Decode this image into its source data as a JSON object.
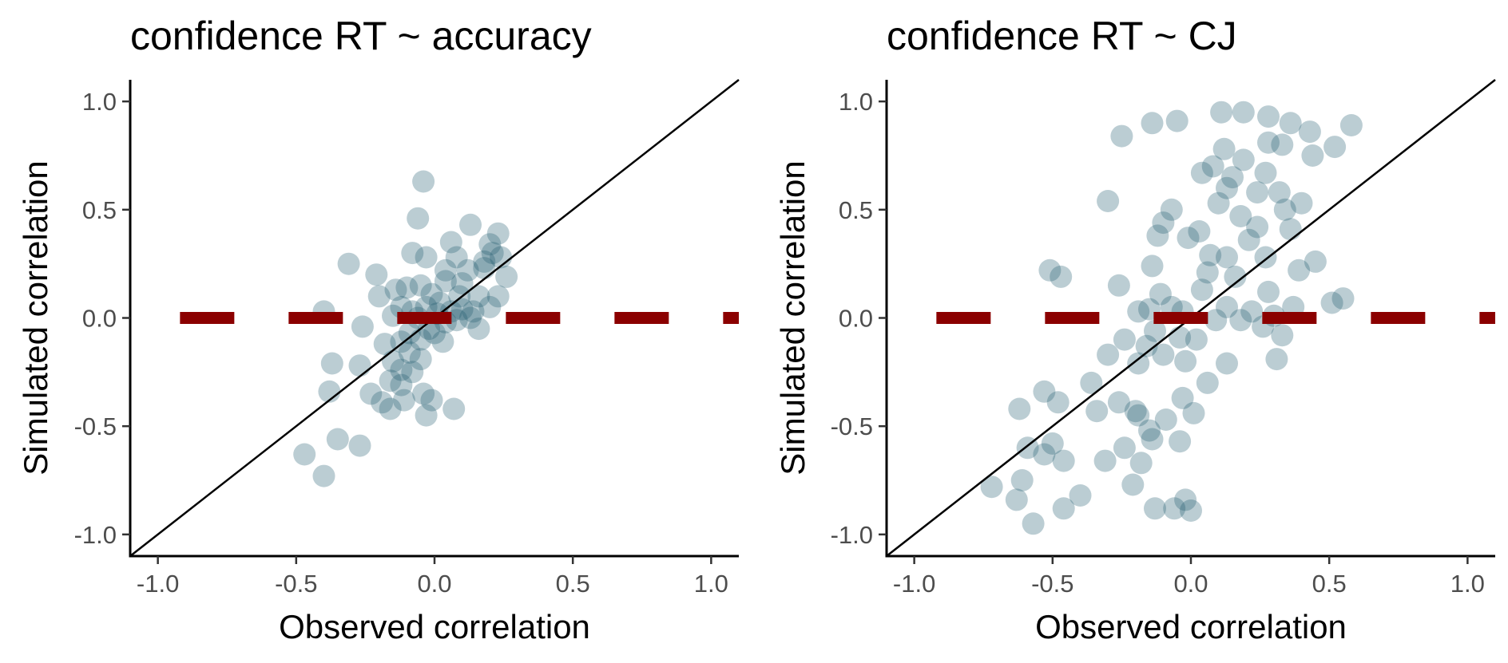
{
  "chart_data": [
    {
      "type": "scatter",
      "title": "confidence RT ~ accuracy",
      "xlabel": "Observed correlation",
      "ylabel": "Simulated correlation",
      "xlim": [
        -1.1,
        1.1
      ],
      "ylim": [
        -1.1,
        1.1
      ],
      "xticks": [
        "-1.0",
        "-0.5",
        "0.0",
        "0.5",
        "1.0"
      ],
      "yticks": [
        "-1.0",
        "-0.5",
        "0.0",
        "0.5",
        "1.0"
      ],
      "grid": false,
      "legend": "none",
      "point_color": "#1f5a6e",
      "identity_line": true,
      "hline": {
        "y": 0.0,
        "style": "dashed",
        "color": "#8b0000"
      },
      "points": [
        [
          -0.04,
          0.63
        ],
        [
          -0.06,
          0.46
        ],
        [
          0.06,
          0.35
        ],
        [
          0.13,
          0.43
        ],
        [
          0.23,
          0.39
        ],
        [
          0.2,
          0.34
        ],
        [
          0.21,
          0.3
        ],
        [
          0.24,
          0.28
        ],
        [
          0.26,
          0.19
        ],
        [
          0.18,
          0.23
        ],
        [
          0.16,
          0.1
        ],
        [
          0.08,
          0.28
        ],
        [
          -0.08,
          0.3
        ],
        [
          -0.03,
          0.28
        ],
        [
          0.04,
          0.22
        ],
        [
          0.12,
          0.22
        ],
        [
          0.04,
          0.17
        ],
        [
          -0.05,
          0.15
        ],
        [
          -0.1,
          0.14
        ],
        [
          -0.14,
          0.13
        ],
        [
          -0.2,
          0.1
        ],
        [
          0.09,
          0.1
        ],
        [
          0.02,
          0.07
        ],
        [
          -0.03,
          0.05
        ],
        [
          -0.08,
          0.03
        ],
        [
          0.06,
          0.03
        ],
        [
          0.1,
          0.04
        ],
        [
          0.01,
          0.02
        ],
        [
          0.08,
          -0.01
        ],
        [
          0.13,
          0.0
        ],
        [
          -0.15,
          0.01
        ],
        [
          -0.06,
          0.0
        ],
        [
          0.04,
          -0.02
        ],
        [
          0.2,
          0.05
        ],
        [
          -0.31,
          0.25
        ],
        [
          -0.21,
          0.2
        ],
        [
          -0.4,
          0.03
        ],
        [
          -0.26,
          -0.04
        ],
        [
          -0.37,
          -0.21
        ],
        [
          -0.27,
          -0.22
        ],
        [
          -0.12,
          -0.11
        ],
        [
          -0.15,
          -0.2
        ],
        [
          -0.09,
          -0.16
        ],
        [
          -0.05,
          -0.19
        ],
        [
          -0.12,
          -0.24
        ],
        [
          -0.08,
          -0.25
        ],
        [
          -0.16,
          -0.29
        ],
        [
          -0.12,
          -0.31
        ],
        [
          -0.23,
          -0.35
        ],
        [
          -0.19,
          -0.39
        ],
        [
          -0.16,
          -0.42
        ],
        [
          -0.11,
          -0.38
        ],
        [
          -0.04,
          -0.35
        ],
        [
          -0.01,
          -0.38
        ],
        [
          0.07,
          -0.42
        ],
        [
          -0.03,
          -0.45
        ],
        [
          -0.38,
          -0.34
        ],
        [
          -0.47,
          -0.63
        ],
        [
          -0.35,
          -0.56
        ],
        [
          -0.27,
          -0.59
        ],
        [
          -0.4,
          -0.73
        ],
        [
          0.0,
          -0.07
        ],
        [
          0.03,
          -0.11
        ],
        [
          -0.02,
          -0.05
        ],
        [
          0.14,
          0.03
        ],
        [
          -0.12,
          0.05
        ],
        [
          0.1,
          0.16
        ],
        [
          0.18,
          0.26
        ],
        [
          -0.05,
          -0.1
        ],
        [
          -0.18,
          -0.12
        ],
        [
          -0.09,
          -0.07
        ],
        [
          -0.01,
          0.11
        ],
        [
          0.16,
          -0.05
        ],
        [
          0.23,
          0.1
        ]
      ]
    },
    {
      "type": "scatter",
      "title": "confidence RT ~ CJ",
      "xlabel": "Observed correlation",
      "ylabel": "Simulated correlation",
      "xlim": [
        -1.1,
        1.1
      ],
      "ylim": [
        -1.1,
        1.1
      ],
      "xticks": [
        "-1.0",
        "-0.5",
        "0.0",
        "0.5",
        "1.0"
      ],
      "yticks": [
        "-1.0",
        "-0.5",
        "0.0",
        "0.5",
        "1.0"
      ],
      "grid": false,
      "legend": "none",
      "point_color": "#1f5a6e",
      "identity_line": true,
      "hline": {
        "y": 0.0,
        "style": "dashed",
        "color": "#8b0000"
      },
      "points": [
        [
          -0.14,
          0.9
        ],
        [
          -0.05,
          0.91
        ],
        [
          -0.25,
          0.84
        ],
        [
          0.11,
          0.95
        ],
        [
          0.19,
          0.95
        ],
        [
          0.28,
          0.93
        ],
        [
          0.36,
          0.9
        ],
        [
          0.43,
          0.86
        ],
        [
          0.58,
          0.89
        ],
        [
          0.52,
          0.79
        ],
        [
          0.44,
          0.75
        ],
        [
          0.33,
          0.8
        ],
        [
          0.12,
          0.78
        ],
        [
          0.08,
          0.7
        ],
        [
          0.04,
          0.67
        ],
        [
          0.19,
          0.73
        ],
        [
          0.28,
          0.81
        ],
        [
          0.13,
          0.6
        ],
        [
          0.24,
          0.58
        ],
        [
          0.32,
          0.58
        ],
        [
          0.4,
          0.53
        ],
        [
          0.34,
          0.5
        ],
        [
          0.1,
          0.53
        ],
        [
          0.18,
          0.47
        ],
        [
          -0.07,
          0.5
        ],
        [
          -0.1,
          0.44
        ],
        [
          -0.12,
          0.38
        ],
        [
          -0.01,
          0.37
        ],
        [
          0.24,
          0.42
        ],
        [
          0.36,
          0.41
        ],
        [
          0.21,
          0.36
        ],
        [
          0.13,
          0.28
        ],
        [
          0.06,
          0.21
        ],
        [
          0.04,
          0.13
        ],
        [
          0.16,
          0.19
        ],
        [
          0.27,
          0.28
        ],
        [
          0.39,
          0.22
        ],
        [
          0.45,
          0.26
        ],
        [
          0.28,
          0.12
        ],
        [
          -0.3,
          0.54
        ],
        [
          -0.47,
          0.19
        ],
        [
          -0.51,
          0.22
        ],
        [
          -0.26,
          0.15
        ],
        [
          -0.14,
          0.24
        ],
        [
          -0.11,
          0.11
        ],
        [
          -0.15,
          0.04
        ],
        [
          -0.19,
          0.03
        ],
        [
          -0.07,
          0.05
        ],
        [
          -0.03,
          0.03
        ],
        [
          0.13,
          0.05
        ],
        [
          0.22,
          0.03
        ],
        [
          0.3,
          0.01
        ],
        [
          0.37,
          0.05
        ],
        [
          0.51,
          0.07
        ],
        [
          0.55,
          0.09
        ],
        [
          0.18,
          -0.01
        ],
        [
          0.26,
          -0.04
        ],
        [
          0.33,
          -0.08
        ],
        [
          -0.24,
          -0.1
        ],
        [
          -0.3,
          -0.17
        ],
        [
          -0.19,
          -0.21
        ],
        [
          -0.16,
          -0.13
        ],
        [
          -0.1,
          -0.17
        ],
        [
          -0.04,
          -0.09
        ],
        [
          -0.02,
          -0.2
        ],
        [
          0.06,
          -0.3
        ],
        [
          0.13,
          -0.21
        ],
        [
          0.31,
          -0.19
        ],
        [
          -0.36,
          -0.3
        ],
        [
          -0.34,
          -0.43
        ],
        [
          -0.26,
          -0.39
        ],
        [
          -0.19,
          -0.45
        ],
        [
          -0.15,
          -0.52
        ],
        [
          -0.09,
          -0.47
        ],
        [
          -0.03,
          -0.37
        ],
        [
          0.01,
          -0.44
        ],
        [
          -0.48,
          -0.39
        ],
        [
          -0.53,
          -0.34
        ],
        [
          -0.62,
          -0.42
        ],
        [
          -0.53,
          -0.63
        ],
        [
          -0.5,
          -0.58
        ],
        [
          -0.59,
          -0.6
        ],
        [
          -0.46,
          -0.66
        ],
        [
          -0.61,
          -0.75
        ],
        [
          -0.72,
          -0.78
        ],
        [
          -0.63,
          -0.84
        ],
        [
          -0.57,
          -0.95
        ],
        [
          -0.46,
          -0.88
        ],
        [
          -0.4,
          -0.82
        ],
        [
          -0.31,
          -0.66
        ],
        [
          -0.24,
          -0.6
        ],
        [
          -0.18,
          -0.67
        ],
        [
          -0.21,
          -0.77
        ],
        [
          -0.13,
          -0.88
        ],
        [
          -0.06,
          -0.88
        ],
        [
          -0.02,
          -0.84
        ],
        [
          0.0,
          -0.89
        ],
        [
          -0.14,
          -0.56
        ],
        [
          -0.04,
          -0.57
        ],
        [
          -0.2,
          -0.43
        ],
        [
          0.03,
          0.4
        ],
        [
          0.15,
          0.65
        ],
        [
          0.27,
          0.67
        ],
        [
          0.02,
          -0.1
        ],
        [
          -0.13,
          -0.06
        ],
        [
          0.09,
          -0.01
        ],
        [
          0.07,
          0.29
        ]
      ]
    }
  ]
}
